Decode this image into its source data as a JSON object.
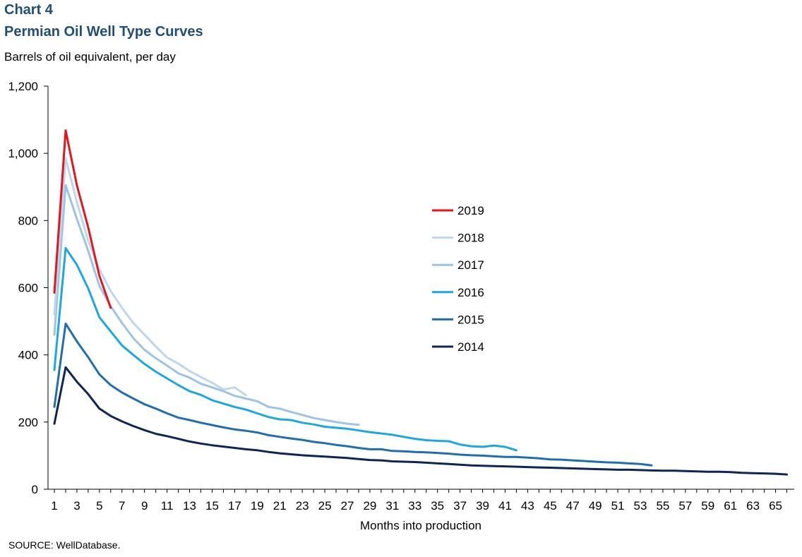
{
  "header": {
    "chart_number": "Chart 4",
    "title": "Permian Oil Well Type Curves",
    "unit_label": "Barrels of oil equivalent,  per day"
  },
  "footer": {
    "source": "SOURCE:  WellDatabase."
  },
  "colors": {
    "2019": "#e8141b",
    "2018": "#bdd7ee",
    "2017": "#9dc3e6",
    "2016": "#1aa7e6",
    "2015": "#1f6eb3",
    "2014": "#0d2557"
  },
  "chart_data": {
    "type": "line",
    "title": "Permian Oil Well Type Curves",
    "xlabel": "Months into production",
    "ylabel": "Barrels of oil equivalent,  per day",
    "xlim": [
      1,
      66
    ],
    "ylim": [
      0,
      1200
    ],
    "yticks": [
      0,
      200,
      400,
      600,
      800,
      1000,
      1200
    ],
    "ytick_labels": [
      "0",
      "200",
      "400",
      "600",
      "800",
      "1,000",
      "1,200"
    ],
    "xticks": [
      1,
      3,
      5,
      7,
      9,
      11,
      13,
      15,
      17,
      19,
      21,
      23,
      25,
      27,
      29,
      31,
      33,
      35,
      37,
      39,
      41,
      43,
      45,
      47,
      49,
      51,
      53,
      55,
      57,
      59,
      61,
      63,
      65
    ],
    "grid": false,
    "legend_position": "right-center",
    "series": [
      {
        "name": "2019",
        "color": "#e8141b",
        "values": [
          585,
          1068,
          905,
          780,
          635,
          540
        ]
      },
      {
        "name": "2018",
        "color": "#bdd7ee",
        "values": [
          520,
          985,
          855,
          740,
          655,
          590,
          540,
          495,
          460,
          425,
          392,
          374,
          352,
          334,
          317,
          297,
          303,
          280
        ]
      },
      {
        "name": "2017",
        "color": "#9dc3e6",
        "values": [
          460,
          905,
          805,
          710,
          605,
          545,
          495,
          450,
          415,
          390,
          368,
          345,
          332,
          314,
          303,
          292,
          278,
          270,
          262,
          245,
          240,
          230,
          221,
          212,
          206,
          200,
          195,
          192
        ]
      },
      {
        "name": "2016",
        "color": "#1aa7e6",
        "values": [
          355,
          718,
          668,
          598,
          512,
          470,
          428,
          400,
          373,
          350,
          330,
          310,
          292,
          281,
          265,
          255,
          245,
          237,
          226,
          215,
          208,
          206,
          198,
          193,
          186,
          183,
          180,
          175,
          170,
          166,
          162,
          156,
          150,
          146,
          144,
          143,
          133,
          128,
          126,
          130,
          126,
          116
        ]
      },
      {
        "name": "2015",
        "color": "#1f6eb3",
        "values": [
          245,
          493,
          440,
          393,
          342,
          310,
          288,
          270,
          253,
          240,
          226,
          213,
          206,
          198,
          191,
          184,
          178,
          174,
          169,
          161,
          156,
          151,
          147,
          141,
          137,
          132,
          128,
          123,
          119,
          119,
          114,
          113,
          111,
          110,
          108,
          106,
          103,
          101,
          100,
          98,
          96,
          96,
          94,
          92,
          89,
          88,
          86,
          84,
          82,
          80,
          79,
          77,
          75,
          71
        ]
      },
      {
        "name": "2014",
        "color": "#0d2557",
        "values": [
          195,
          363,
          320,
          283,
          240,
          218,
          202,
          188,
          176,
          165,
          158,
          150,
          142,
          136,
          131,
          127,
          123,
          119,
          116,
          111,
          107,
          104,
          101,
          99,
          97,
          95,
          93,
          90,
          87,
          86,
          83,
          82,
          81,
          79,
          77,
          75,
          73,
          71,
          70,
          69,
          68,
          67,
          66,
          65,
          64,
          63,
          62,
          61,
          60,
          59,
          58,
          58,
          57,
          56,
          55,
          55,
          54,
          53,
          52,
          52,
          51,
          49,
          48,
          47,
          46,
          44
        ]
      }
    ]
  }
}
